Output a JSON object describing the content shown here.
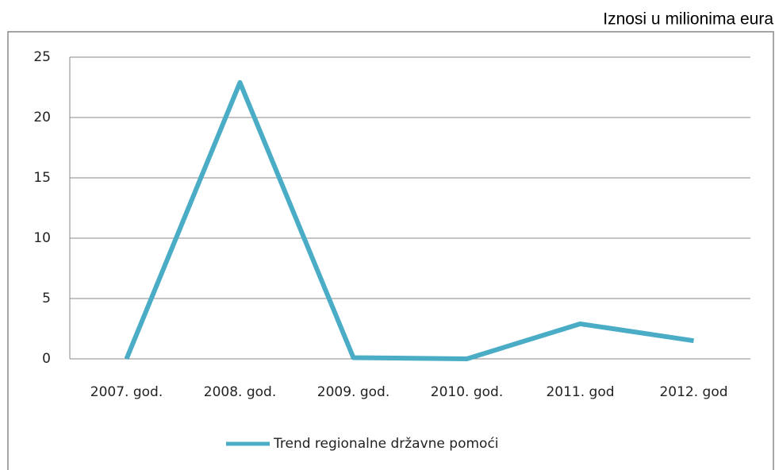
{
  "chart_data": {
    "type": "line",
    "note": "Iznosi u milionima eura",
    "categories": [
      "2007. god.",
      "2008. god.",
      "2009. god.",
      "2010. god.",
      "2011. god",
      "2012. god"
    ],
    "series": [
      {
        "name": "Trend regionalne državne pomoći",
        "color": "#4bacc6",
        "values": [
          0,
          22.9,
          0.1,
          0,
          2.9,
          1.5
        ]
      }
    ],
    "ylim": [
      0,
      25
    ],
    "yticks": [
      0,
      5,
      10,
      15,
      20,
      25
    ],
    "grid": true,
    "legend": "bottom"
  }
}
